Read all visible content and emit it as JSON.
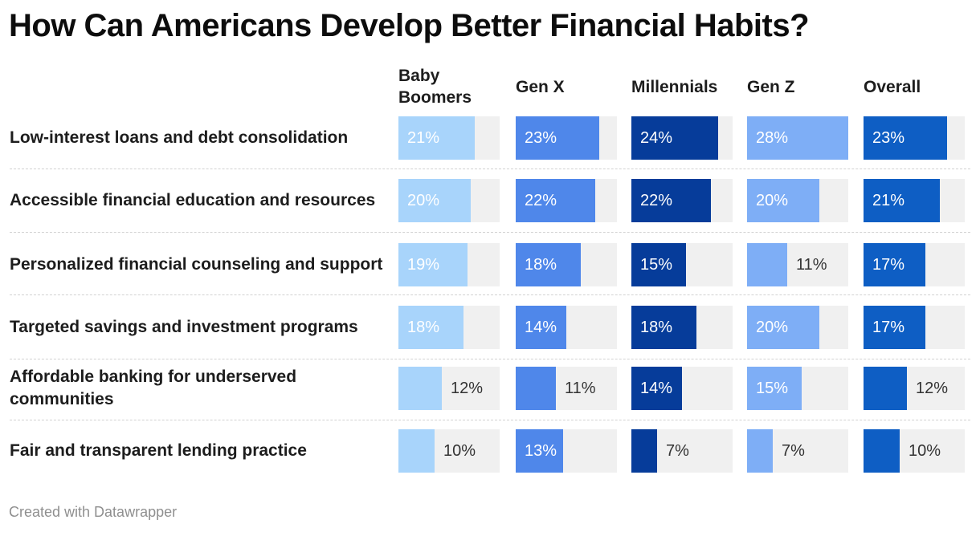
{
  "title": "How Can Americans Develop Better Financial Habits?",
  "footer": "Created with Datawrapper",
  "chart_data": {
    "type": "table",
    "title": "How Can Americans Develop Better Financial Habits?",
    "columns": [
      {
        "name": "Baby Boomers",
        "color": "#a8d4fb"
      },
      {
        "name": "Gen X",
        "color": "#4f87ea"
      },
      {
        "name": "Millennials",
        "color": "#063c9a"
      },
      {
        "name": "Gen Z",
        "color": "#7eaef6"
      },
      {
        "name": "Overall",
        "color": "#0e5ec4"
      }
    ],
    "categories": [
      "Low-interest loans and debt consolidation",
      "Accessible financial education and resources",
      "Personalized financial counseling and support",
      "Targeted savings and investment programs",
      "Affordable banking for underserved communities",
      "Fair and transparent lending practice"
    ],
    "series": [
      {
        "name": "Baby Boomers",
        "values": [
          21,
          20,
          19,
          18,
          12,
          10
        ]
      },
      {
        "name": "Gen X",
        "values": [
          23,
          22,
          18,
          14,
          11,
          13
        ]
      },
      {
        "name": "Millennials",
        "values": [
          24,
          22,
          15,
          18,
          14,
          7
        ]
      },
      {
        "name": "Gen Z",
        "values": [
          28,
          20,
          11,
          20,
          15,
          7
        ]
      },
      {
        "name": "Overall",
        "values": [
          23,
          21,
          17,
          17,
          12,
          10
        ]
      }
    ],
    "value_suffix": "%",
    "bar_max": 28
  }
}
